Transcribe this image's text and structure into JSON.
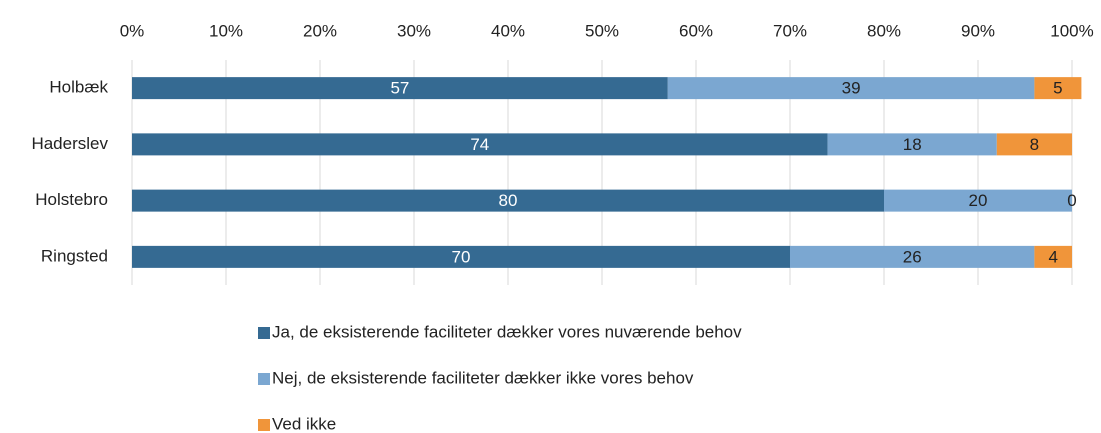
{
  "chart_data": {
    "type": "stacked_barh",
    "categories": [
      "Holbæk",
      "Haderslev",
      "Holstebro",
      "Ringsted"
    ],
    "series": [
      {
        "name": "Ja, de eksisterende faciliteter dækker vores nuværende behov",
        "color": "#356a92",
        "values": [
          57,
          74,
          80,
          70
        ]
      },
      {
        "name": "Nej, de eksisterende faciliteter dækker ikke vores behov",
        "color": "#7ba7d1",
        "values": [
          39,
          18,
          20,
          26
        ]
      },
      {
        "name": "Ved ikke",
        "color": "#f0953a",
        "values": [
          5,
          8,
          0,
          4
        ]
      }
    ],
    "xlim": [
      0,
      100
    ],
    "xticks": [
      {
        "value": 0,
        "label": "0%"
      },
      {
        "value": 10,
        "label": "10%"
      },
      {
        "value": 20,
        "label": "20%"
      },
      {
        "value": 30,
        "label": "30%"
      },
      {
        "value": 40,
        "label": "40%"
      },
      {
        "value": 50,
        "label": "50%"
      },
      {
        "value": 60,
        "label": "60%"
      },
      {
        "value": 70,
        "label": "70%"
      },
      {
        "value": 80,
        "label": "80%"
      },
      {
        "value": 90,
        "label": "90%"
      },
      {
        "value": 100,
        "label": "100%"
      }
    ],
    "grid": true,
    "legend": "bottom"
  }
}
